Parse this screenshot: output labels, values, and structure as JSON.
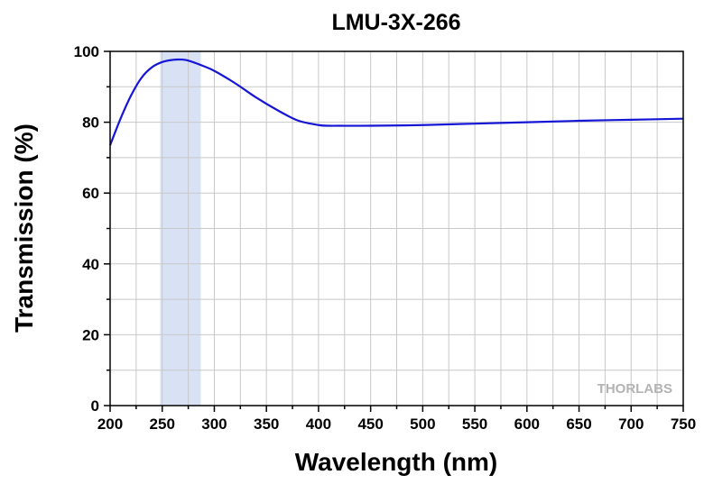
{
  "chart_data": {
    "type": "line",
    "title": "LMU-3X-266",
    "xlabel": "Wavelength (nm)",
    "ylabel": "Transmission (%)",
    "xlim": [
      200,
      750
    ],
    "ylim": [
      0,
      100
    ],
    "x_ticks": [
      "200",
      "250",
      "300",
      "350",
      "400",
      "450",
      "500",
      "550",
      "600",
      "650",
      "700",
      "750"
    ],
    "y_ticks": [
      "0",
      "20",
      "40",
      "60",
      "80",
      "100"
    ],
    "x_tick_values": [
      200,
      250,
      300,
      350,
      400,
      450,
      500,
      550,
      600,
      650,
      700,
      750
    ],
    "y_tick_values": [
      0,
      20,
      40,
      60,
      80,
      100
    ],
    "x_minor_step": 25,
    "y_minor_step": 10,
    "grid": true,
    "highlight_band": {
      "x_start": 248,
      "x_end": 287,
      "color": "#d9e2f5"
    },
    "series": [
      {
        "color": "#1515d6",
        "x": [
          200,
          210,
          220,
          230,
          240,
          250,
          260,
          268,
          275,
          290,
          300,
          320,
          340,
          360,
          380,
          400,
          410,
          420,
          450,
          500,
          550,
          600,
          650,
          700,
          750
        ],
        "y": [
          73.5,
          81,
          87.5,
          92.5,
          95.5,
          97,
          97.6,
          97.7,
          97.4,
          95.8,
          94.5,
          91,
          87,
          83.5,
          80.5,
          79.2,
          79,
          79,
          79,
          79.2,
          79.6,
          80,
          80.4,
          80.7,
          81
        ]
      }
    ]
  },
  "watermark": {
    "text": "THORLABS"
  }
}
